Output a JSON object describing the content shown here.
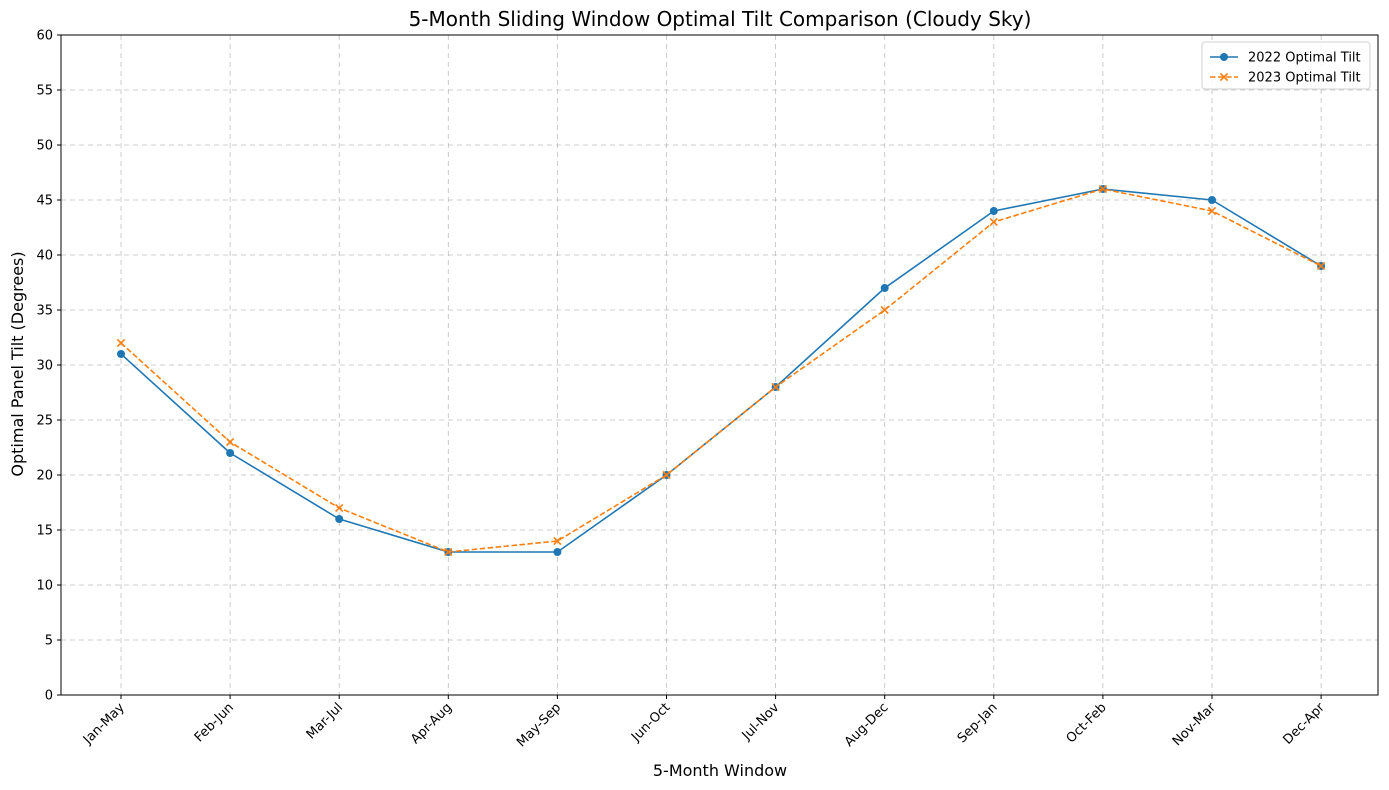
{
  "chart_data": {
    "type": "line",
    "title": "5-Month Sliding Window Optimal Tilt Comparison (Cloudy Sky)",
    "xlabel": "5-Month Window",
    "ylabel": "Optimal Panel Tilt (Degrees)",
    "categories": [
      "Jan-May",
      "Feb-Jun",
      "Mar-Jul",
      "Apr-Aug",
      "May-Sep",
      "Jun-Oct",
      "Jul-Nov",
      "Aug-Dec",
      "Sep-Jan",
      "Oct-Feb",
      "Nov-Mar",
      "Dec-Apr"
    ],
    "ylim": [
      0,
      60
    ],
    "yticks": [
      0,
      5,
      10,
      15,
      20,
      25,
      30,
      35,
      40,
      45,
      50,
      55,
      60
    ],
    "grid": true,
    "legend_position": "top-right",
    "series": [
      {
        "name": "2022 Optimal Tilt",
        "values": [
          31,
          22,
          16,
          13,
          13,
          20,
          28,
          37,
          44,
          46,
          45,
          39
        ],
        "color": "#1f77b4",
        "line_style": "solid",
        "marker": "circle"
      },
      {
        "name": "2023 Optimal Tilt",
        "values": [
          32,
          23,
          17,
          13,
          14,
          20,
          28,
          35,
          43,
          46,
          44,
          39
        ],
        "color": "#ff7f0e",
        "line_style": "dashed",
        "marker": "x"
      }
    ]
  }
}
